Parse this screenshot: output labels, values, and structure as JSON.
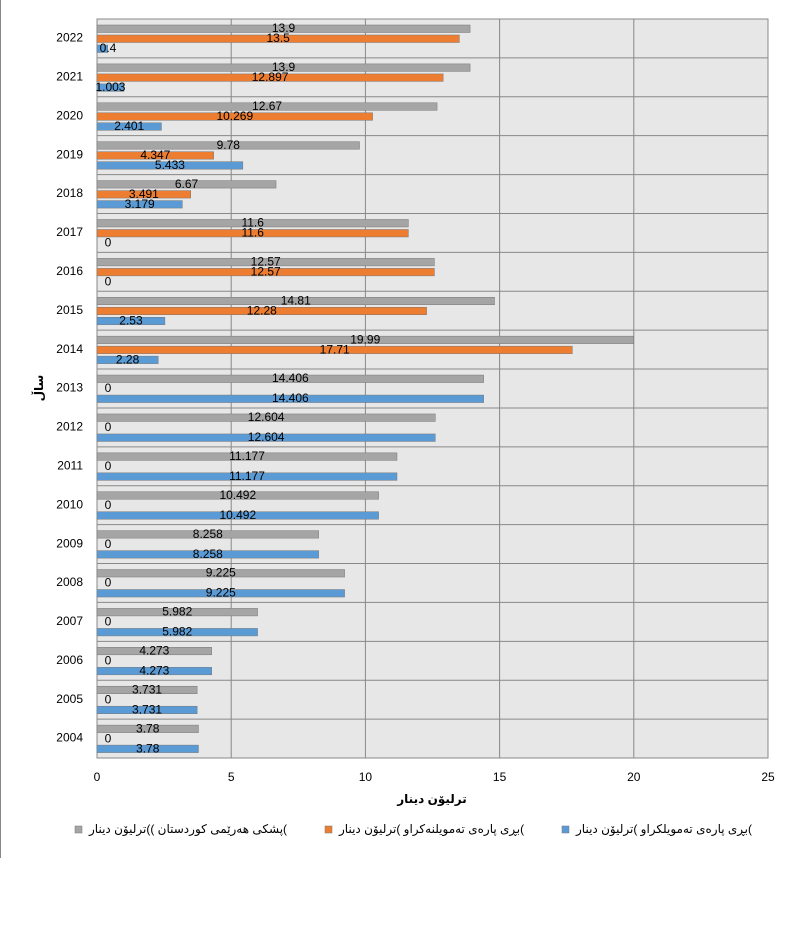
{
  "chart_data": {
    "type": "bar",
    "orientation": "horizontal",
    "x_label": "ترلیۆن دینار",
    "y_label": "ساڵ",
    "categories": [
      "2004",
      "2005",
      "2006",
      "2007",
      "2008",
      "2009",
      "2010",
      "2011",
      "2012",
      "2013",
      "2014",
      "2015",
      "2016",
      "2017",
      "2018",
      "2019",
      "2020",
      "2021",
      "2022"
    ],
    "series": [
      {
        "name": "بڕی پارەی تەمویلکراو )ترلیۆن دینار(",
        "color": "#5b9bd5",
        "values": [
          3.78,
          3.731,
          4.273,
          5.982,
          9.225,
          8.258,
          10.492,
          11.177,
          12.604,
          14.406,
          2.28,
          2.53,
          0,
          0,
          3.179,
          5.433,
          2.401,
          1.003,
          0.4
        ]
      },
      {
        "name": "بڕی پارەی تەمویلنەکراو )ترلیۆن دینار(",
        "color": "#ed7d31",
        "values": [
          0,
          0,
          0,
          0,
          0,
          0,
          0,
          0,
          0,
          0,
          17.71,
          12.28,
          12.57,
          11.6,
          3.491,
          4.347,
          10.269,
          12.897,
          13.5
        ]
      },
      {
        "name": "پشکی هەرێمی کوردستان  ))ترلیۆن دینار(",
        "color": "#a5a5a5",
        "values": [
          3.78,
          3.731,
          4.273,
          5.982,
          9.225,
          8.258,
          10.492,
          11.177,
          12.604,
          14.406,
          19.99,
          14.81,
          12.57,
          11.6,
          6.67,
          9.78,
          12.67,
          13.9,
          13.9
        ]
      }
    ],
    "xlim": [
      0,
      25
    ],
    "xticks": [
      0,
      5,
      10,
      15,
      20,
      25
    ],
    "grid": true
  }
}
